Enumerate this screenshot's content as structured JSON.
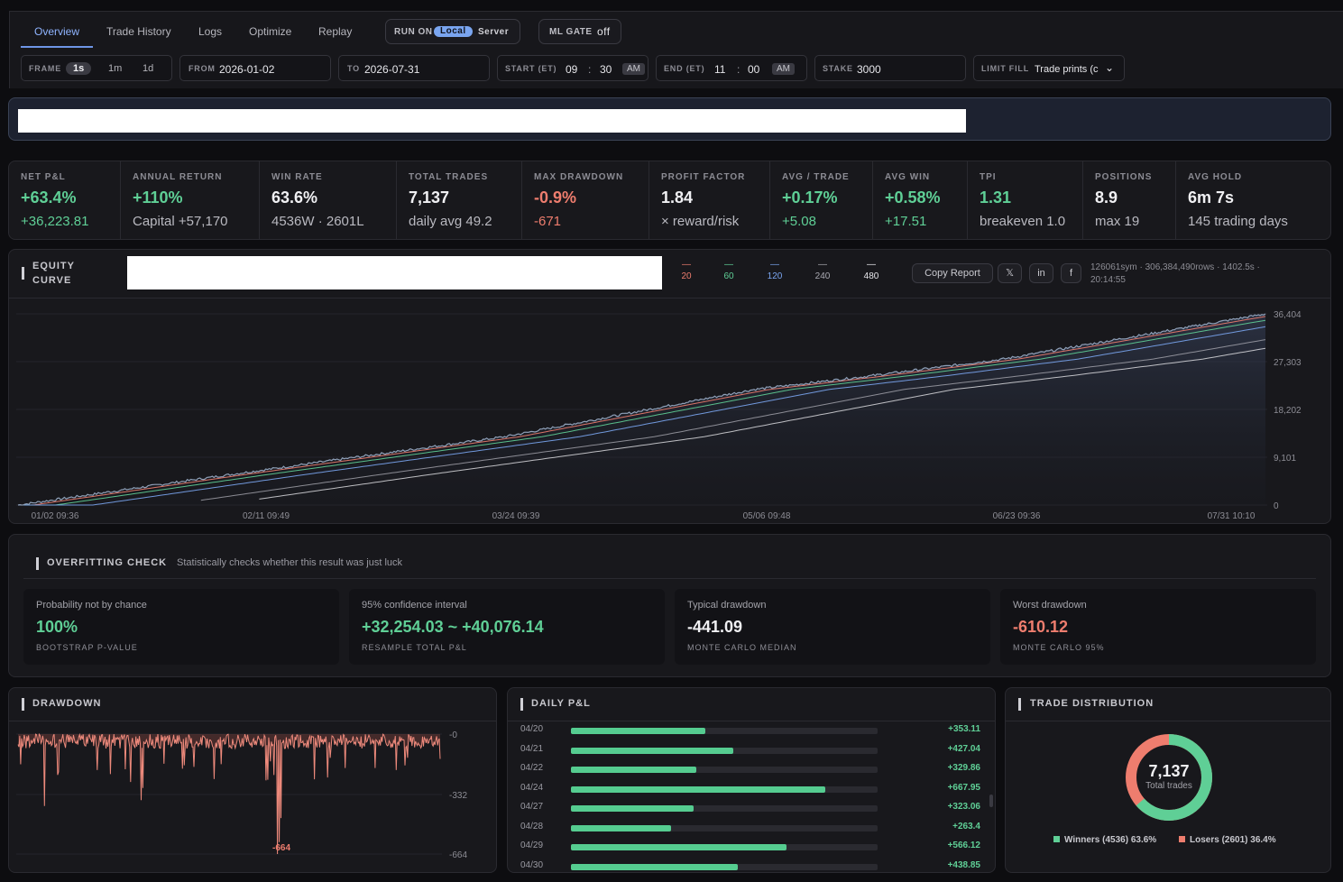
{
  "tabs": [
    "Overview",
    "Trade History",
    "Logs",
    "Optimize",
    "Replay"
  ],
  "run_on": {
    "label": "RUN ON",
    "local": "Local",
    "server": "Server"
  },
  "ml_gate": {
    "label": "ML GATE",
    "value": "off"
  },
  "frame": {
    "label": "FRAME",
    "options": [
      "1s",
      "1m",
      "1d"
    ],
    "selected": "1s"
  },
  "from": {
    "label": "FROM",
    "value": "2026-01-02"
  },
  "to": {
    "label": "TO",
    "value": "2026-07-31"
  },
  "start": {
    "label": "START (ET)",
    "hour": "09",
    "min": "30",
    "ampm": "AM"
  },
  "end": {
    "label": "END (ET)",
    "hour": "11",
    "min": "00",
    "ampm": "AM"
  },
  "stake": {
    "label": "STAKE",
    "value": "3000"
  },
  "limit_fill": {
    "label": "LIMIT FILL",
    "value": "Trade prints (c"
  },
  "kpis": [
    {
      "label": "NET P&L",
      "value": "+63.4%",
      "sub": "+36,223.81",
      "value_tone": "pos",
      "sub_tone": "pos"
    },
    {
      "label": "ANNUAL RETURN",
      "value": "+110%",
      "sub": "Capital +57,170",
      "value_tone": "pos",
      "sub_tone": ""
    },
    {
      "label": "WIN RATE",
      "value": "63.6%",
      "sub": "4536W · 2601L",
      "value_tone": "",
      "sub_tone": ""
    },
    {
      "label": "TOTAL TRADES",
      "value": "7,137",
      "sub": "daily avg 49.2",
      "value_tone": "",
      "sub_tone": ""
    },
    {
      "label": "MAX DRAWDOWN",
      "value": "-0.9%",
      "sub": "-671",
      "value_tone": "neg",
      "sub_tone": "neg"
    },
    {
      "label": "PROFIT FACTOR",
      "value": "1.84",
      "sub": "× reward/risk",
      "value_tone": "",
      "sub_tone": ""
    },
    {
      "label": "AVG / TRADE",
      "value": "+0.17%",
      "sub": "+5.08",
      "value_tone": "pos",
      "sub_tone": "pos"
    },
    {
      "label": "AVG WIN",
      "value": "+0.58%",
      "sub": "+17.51",
      "value_tone": "pos",
      "sub_tone": "pos"
    },
    {
      "label": "TPI",
      "value": "1.31",
      "sub": "breakeven 1.0",
      "value_tone": "pos",
      "sub_tone": ""
    },
    {
      "label": "POSITIONS",
      "value": "8.9",
      "sub": "max 19",
      "value_tone": "",
      "sub_tone": ""
    },
    {
      "label": "AVG HOLD",
      "value": "6m 7s",
      "sub": "145 trading days",
      "value_tone": "",
      "sub_tone": ""
    }
  ],
  "equity": {
    "title_1": "EQUITY",
    "title_2": "CURVE",
    "ma": [
      {
        "label": "20",
        "color": "#ee7d6e"
      },
      {
        "label": "60",
        "color": "#5fcf96"
      },
      {
        "label": "120",
        "color": "#7aa5f0"
      },
      {
        "label": "240",
        "color": "#a8a8b0"
      },
      {
        "label": "480",
        "color": "#e6e6ea"
      }
    ],
    "copy_label": "Copy Report",
    "share": [
      "𝕏",
      "in",
      "f"
    ],
    "meta_1": "126061sym · 306,384,490rows · 1402.5s ·",
    "meta_2": "20:14:55"
  },
  "overfit": {
    "title": "OVERFITTING CHECK",
    "subtitle": "Statistically checks whether this result was just luck",
    "cards": [
      {
        "label": "Probability not by chance",
        "value": "100%",
        "sub": "BOOTSTRAP P-VALUE",
        "tone": "pos"
      },
      {
        "label": "95% confidence interval",
        "value": "+32,254.03 ~ +40,076.14",
        "sub": "RESAMPLE TOTAL P&L",
        "tone": "pos"
      },
      {
        "label": "Typical drawdown",
        "value": "-441.09",
        "sub": "MONTE CARLO MEDIAN",
        "tone": ""
      },
      {
        "label": "Worst drawdown",
        "value": "-610.12",
        "sub": "MONTE CARLO 95%",
        "tone": "neg"
      }
    ]
  },
  "drawdown": {
    "title": "DRAWDOWN",
    "min_label": "-664"
  },
  "daily_pnl": {
    "title": "DAILY P&L",
    "rows": [
      {
        "date": "04/20",
        "label": "+353.11",
        "value": 353.11
      },
      {
        "date": "04/21",
        "label": "+427.04",
        "value": 427.04
      },
      {
        "date": "04/22",
        "label": "+329.86",
        "value": 329.86
      },
      {
        "date": "04/24",
        "label": "+667.95",
        "value": 667.95
      },
      {
        "date": "04/27",
        "label": "+323.06",
        "value": 323.06
      },
      {
        "date": "04/28",
        "label": "+263.4",
        "value": 263.4
      },
      {
        "date": "04/29",
        "label": "+566.12",
        "value": 566.12
      },
      {
        "date": "04/30",
        "label": "+438.85",
        "value": 438.85
      }
    ]
  },
  "distribution": {
    "title": "TRADE DISTRIBUTION",
    "total": "7,137",
    "total_label": "Total trades",
    "winners_label": "Winners (4536) 63.6%",
    "losers_label": "Losers (2601) 36.4%",
    "winners_pct": 63.6,
    "win_color": "#5fcf96",
    "loss_color": "#ee7d6e"
  },
  "chart_data": [
    {
      "type": "line",
      "x": [
        "01/02 09:36",
        "02/11 09:49",
        "03/24 09:39",
        "05/06 09:48",
        "06/23 09:36",
        "07/31 10:10"
      ],
      "y": [
        0,
        5800,
        13000,
        22000,
        27800,
        36404
      ],
      "yticks": [
        "36,404",
        "27,303",
        "18,202",
        "9,101",
        "0"
      ],
      "ylim": [
        0,
        36404
      ]
    },
    {
      "type": "area",
      "yticks": [
        "-0",
        "-332",
        "-664"
      ],
      "ylim": [
        -664,
        0
      ]
    },
    {
      "type": "bar",
      "categories": [
        "04/20",
        "04/21",
        "04/22",
        "04/24",
        "04/27",
        "04/28",
        "04/29",
        "04/30"
      ],
      "values": [
        353.11,
        427.04,
        329.86,
        667.95,
        323.06,
        263.4,
        566.12,
        438.85
      ]
    },
    {
      "type": "pie",
      "labels": [
        "Winners (4536) 63.6%",
        "Losers (2601) 36.4%"
      ],
      "values": [
        4536,
        2601
      ]
    }
  ]
}
